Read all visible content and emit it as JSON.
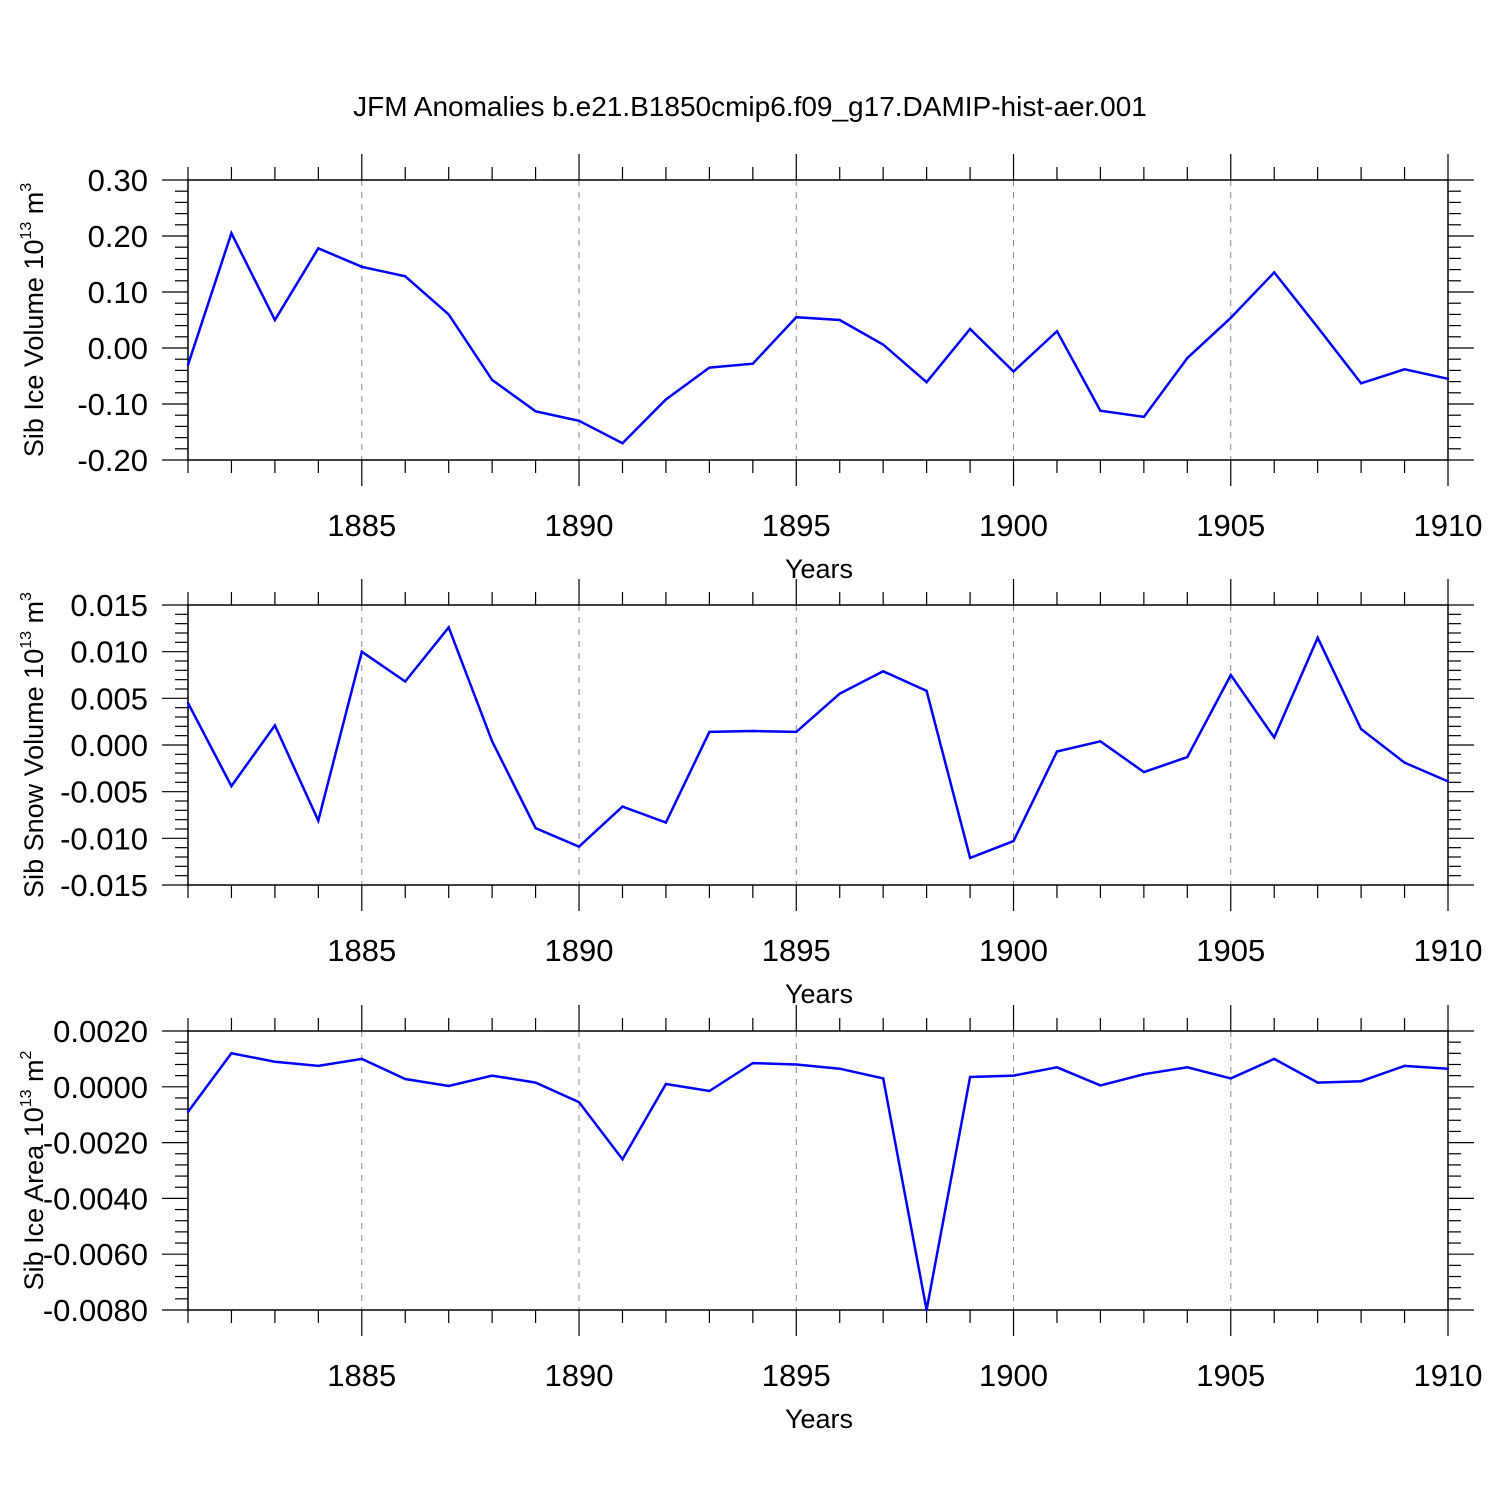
{
  "title": "JFM Anomalies b.e21.B1850cmip6.f09_g17.DAMIP-hist-aer.001",
  "colors": {
    "series": "#0000ff",
    "axis": "#000000",
    "grid": "#888888"
  },
  "chart_data": [
    {
      "type": "line",
      "ylabel": "Sib Ice Volume 10",
      "ylabel_sup": "13",
      "ylabel_unit": " m",
      "ylabel_unit_sup": "3",
      "xlabel": "Years",
      "xlim": [
        1881,
        1910
      ],
      "ylim": [
        -0.2,
        0.3
      ],
      "xticks": [
        1885,
        1890,
        1895,
        1900,
        1905,
        1910
      ],
      "yticks": [
        "-0.20",
        "-0.10",
        "0.00",
        "0.10",
        "0.20",
        "0.30"
      ],
      "grid": "vertical dashed at major x ticks",
      "x": [
        1881,
        1882,
        1883,
        1884,
        1885,
        1886,
        1887,
        1888,
        1889,
        1890,
        1891,
        1892,
        1893,
        1894,
        1895,
        1896,
        1897,
        1898,
        1899,
        1900,
        1901,
        1902,
        1903,
        1904,
        1905,
        1906,
        1907,
        1908,
        1909,
        1910
      ],
      "values": [
        -0.03,
        0.205,
        0.05,
        0.178,
        0.145,
        0.128,
        0.06,
        -0.057,
        -0.113,
        -0.13,
        -0.17,
        -0.092,
        -0.035,
        -0.028,
        0.055,
        0.05,
        0.006,
        -0.061,
        0.034,
        -0.042,
        0.03,
        -0.112,
        -0.123,
        -0.018,
        0.054,
        0.135,
        0.037,
        -0.063,
        -0.038,
        -0.055
      ]
    },
    {
      "type": "line",
      "ylabel": "Sib Snow Volume 10",
      "ylabel_sup": "13",
      "ylabel_unit": " m",
      "ylabel_unit_sup": "3",
      "xlabel": "Years",
      "xlim": [
        1881,
        1910
      ],
      "ylim": [
        -0.015,
        0.015
      ],
      "xticks": [
        1885,
        1890,
        1895,
        1900,
        1905,
        1910
      ],
      "yticks": [
        "-0.015",
        "-0.010",
        "-0.005",
        "0.000",
        "0.005",
        "0.010",
        "0.015"
      ],
      "grid": "vertical dashed at major x ticks",
      "x": [
        1881,
        1882,
        1883,
        1884,
        1885,
        1886,
        1887,
        1888,
        1889,
        1890,
        1891,
        1892,
        1893,
        1894,
        1895,
        1896,
        1897,
        1898,
        1899,
        1900,
        1901,
        1902,
        1903,
        1904,
        1905,
        1906,
        1907,
        1908,
        1909,
        1910
      ],
      "values": [
        0.0045,
        -0.0044,
        0.0021,
        -0.0081,
        0.01,
        0.0068,
        0.0126,
        0.0004,
        -0.0089,
        -0.0109,
        -0.0066,
        -0.0083,
        0.0014,
        0.0015,
        0.0014,
        0.0055,
        0.0079,
        0.0058,
        -0.0121,
        -0.0103,
        -0.0007,
        0.0004,
        -0.0029,
        -0.0013,
        0.0075,
        0.0008,
        0.0115,
        0.0017,
        -0.0019,
        -0.0039
      ]
    },
    {
      "type": "line",
      "ylabel": "Sib Ice Area 10",
      "ylabel_sup": "13",
      "ylabel_unit": " m",
      "ylabel_unit_sup": "2",
      "xlabel": "Years",
      "xlim": [
        1881,
        1910
      ],
      "ylim": [
        -0.008,
        0.002
      ],
      "xticks": [
        1885,
        1890,
        1895,
        1900,
        1905,
        1910
      ],
      "yticks": [
        "-0.0080",
        "-0.0060",
        "-0.0040",
        "-0.0020",
        "0.0000",
        "0.0020"
      ],
      "grid": "vertical dashed at major x ticks",
      "x": [
        1881,
        1882,
        1883,
        1884,
        1885,
        1886,
        1887,
        1888,
        1889,
        1890,
        1891,
        1892,
        1893,
        1894,
        1895,
        1896,
        1897,
        1898,
        1899,
        1900,
        1901,
        1902,
        1903,
        1904,
        1905,
        1906,
        1907,
        1908,
        1909,
        1910
      ],
      "values": [
        -0.0009,
        0.0012,
        0.0009,
        0.00075,
        0.001,
        0.00028,
        3e-05,
        0.0004,
        0.00015,
        -0.00055,
        -0.0026,
        0.0001,
        -0.00015,
        0.00085,
        0.0008,
        0.00065,
        0.0003,
        -0.008,
        0.00035,
        0.0004,
        0.0007,
        5e-05,
        0.00045,
        0.0007,
        0.0003,
        0.001,
        0.00015,
        0.0002,
        0.00075,
        0.00065
      ]
    }
  ]
}
